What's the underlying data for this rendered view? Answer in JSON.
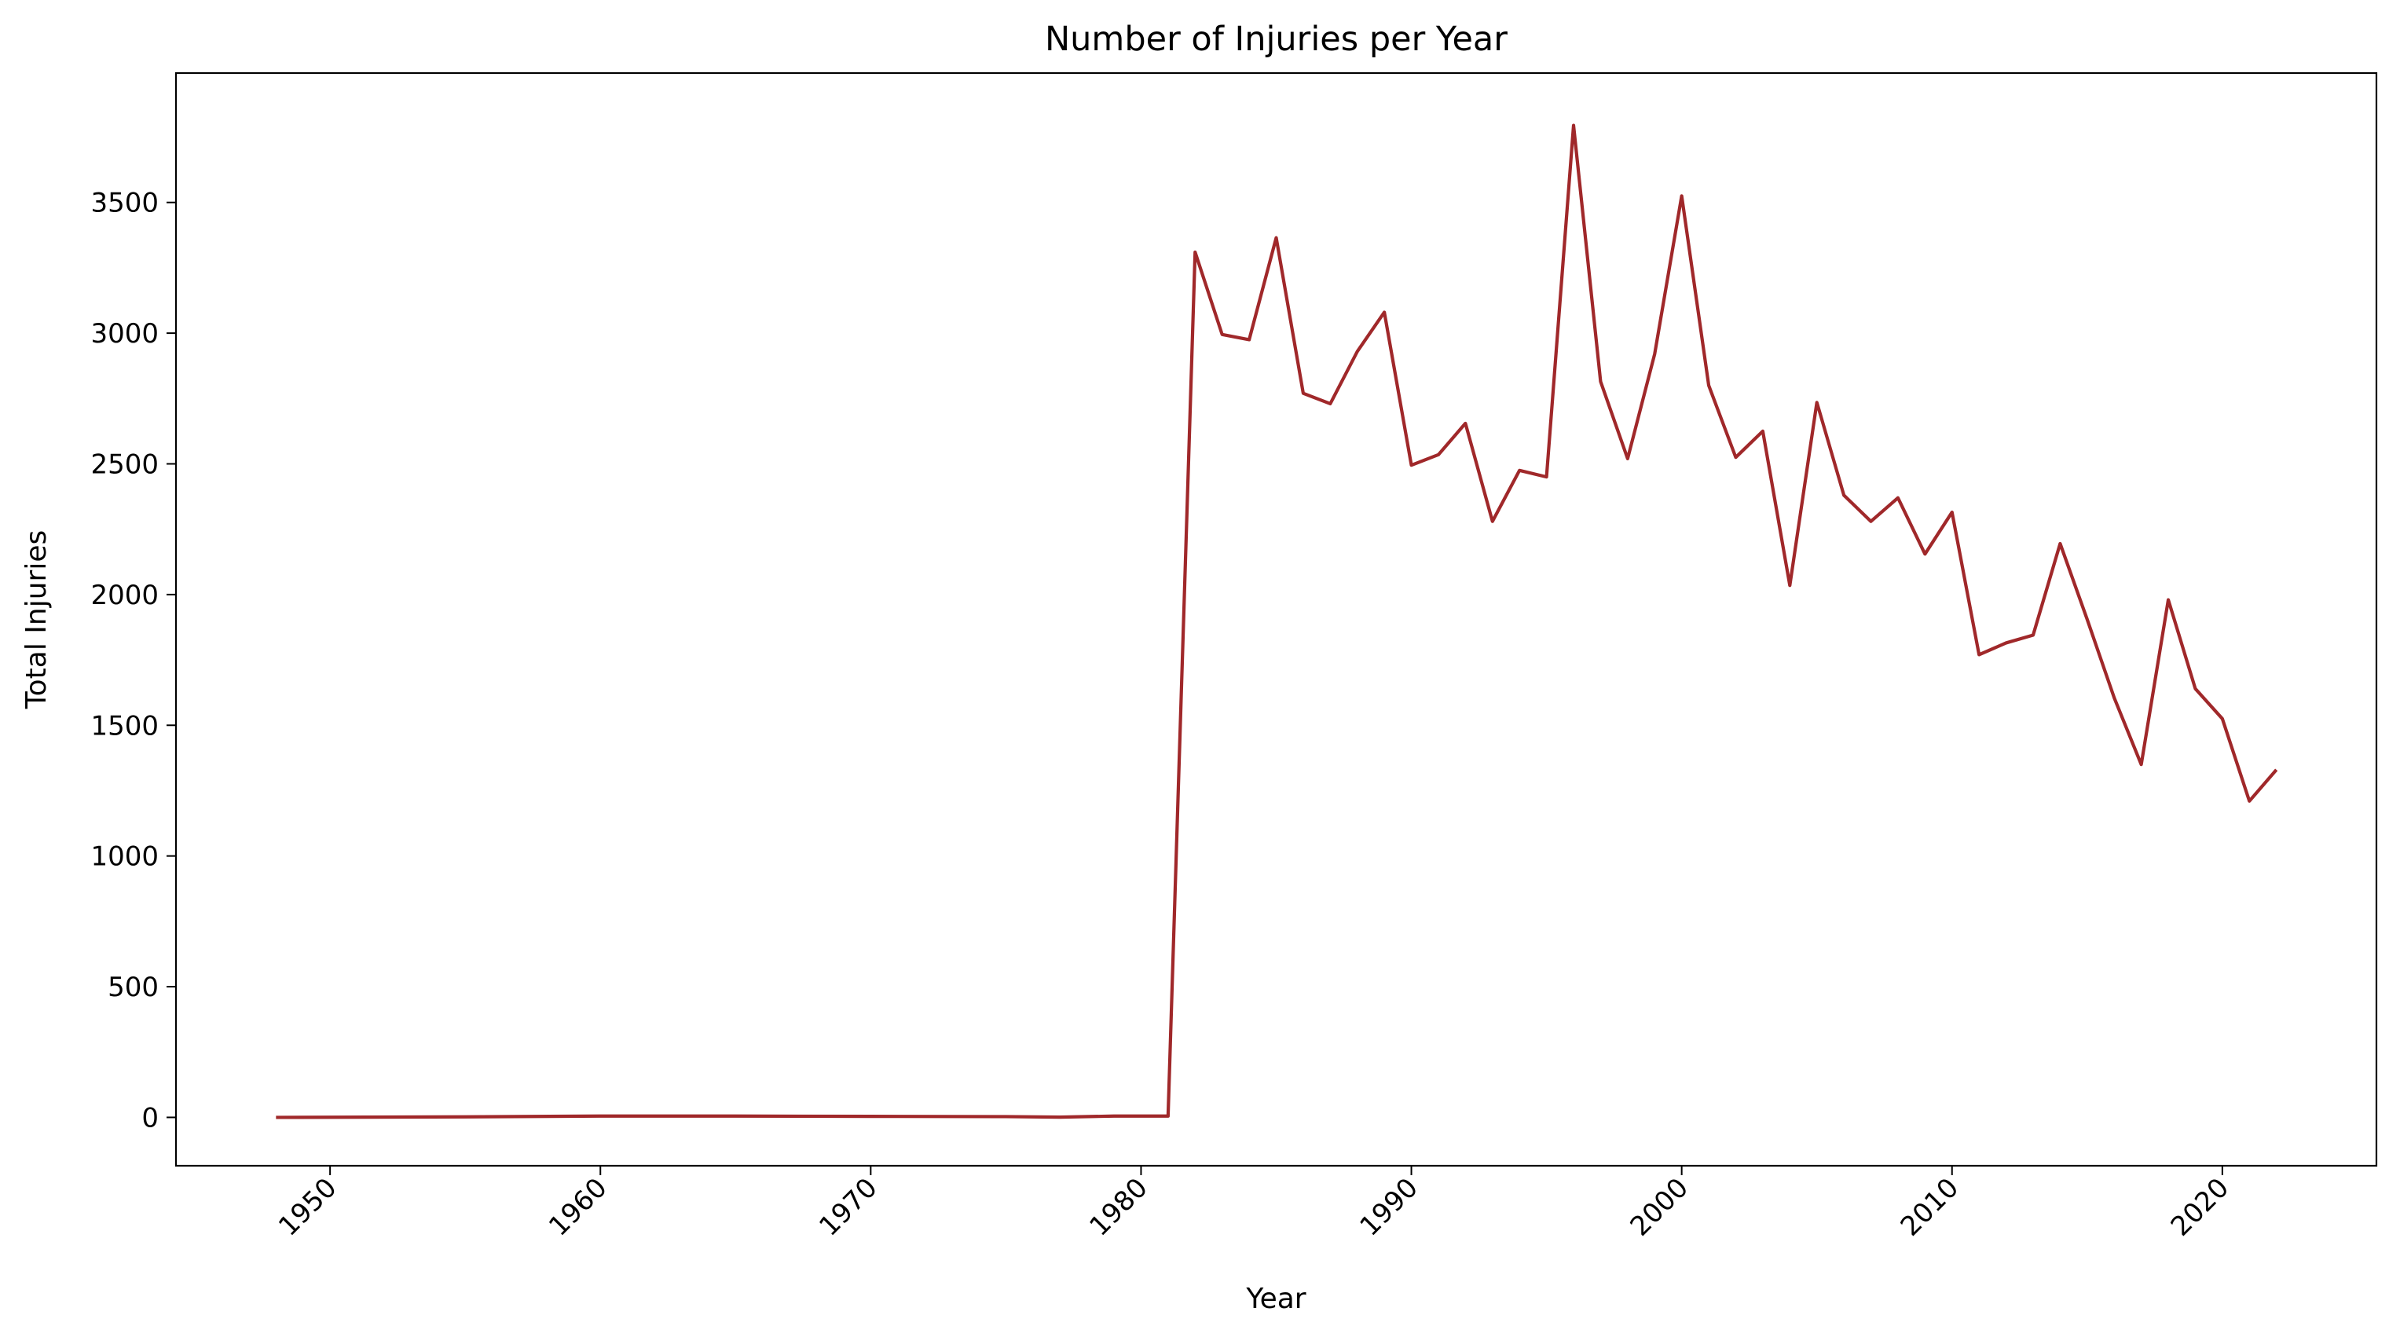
{
  "chart_data": {
    "type": "line",
    "title": "Number of Injuries per Year",
    "xlabel": "Year",
    "ylabel": "Total Injuries",
    "xlim": [
      1944.3,
      2025.7
    ],
    "ylim": [
      -185,
      3995
    ],
    "xticks": [
      1950,
      1960,
      1970,
      1980,
      1990,
      2000,
      2010,
      2020
    ],
    "xtick_labels": [
      "1950",
      "1960",
      "1970",
      "1980",
      "1990",
      "2000",
      "2010",
      "2020"
    ],
    "yticks": [
      0,
      500,
      1000,
      1500,
      2000,
      2500,
      3000,
      3500
    ],
    "ytick_labels": [
      "0",
      "500",
      "1000",
      "1500",
      "2000",
      "2500",
      "3000",
      "3500"
    ],
    "grid": false,
    "legend": "none",
    "series": [
      {
        "color": "#a0282a",
        "x": [
          1948,
          1955,
          1960,
          1965,
          1970,
          1975,
          1977,
          1979,
          1981,
          1982,
          1983,
          1984,
          1985,
          1986,
          1987,
          1988,
          1989,
          1990,
          1991,
          1992,
          1993,
          1994,
          1995,
          1996,
          1997,
          1998,
          1999,
          2000,
          2001,
          2002,
          2003,
          2004,
          2005,
          2006,
          2007,
          2008,
          2009,
          2010,
          2011,
          2012,
          2013,
          2014,
          2015,
          2016,
          2017,
          2018,
          2019,
          2020,
          2021,
          2022
        ],
        "y": [
          0,
          2,
          5,
          5,
          4,
          3,
          1,
          5,
          5,
          3310,
          2995,
          2975,
          3365,
          2770,
          2730,
          2930,
          3080,
          2495,
          2535,
          2655,
          2280,
          2475,
          2450,
          3795,
          2815,
          2520,
          2920,
          3525,
          2800,
          2525,
          2625,
          2035,
          2735,
          2380,
          2280,
          2370,
          2155,
          2315,
          1770,
          1815,
          1845,
          2195,
          1905,
          1605,
          1350,
          1980,
          1640,
          1525,
          1210,
          1330
        ]
      }
    ]
  }
}
